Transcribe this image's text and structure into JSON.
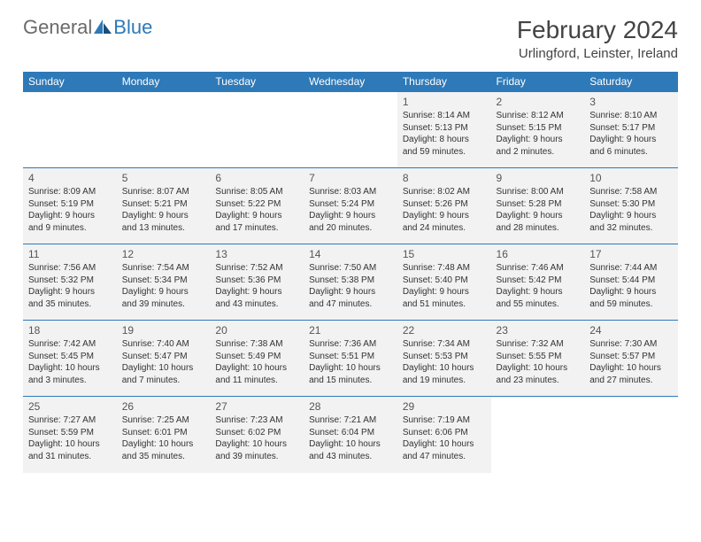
{
  "brand": {
    "word1": "General",
    "word2": "Blue"
  },
  "title": "February 2024",
  "location": "Urlingford, Leinster, Ireland",
  "colors": {
    "header_bg": "#2e79b8",
    "header_fg": "#ffffff",
    "cell_bg": "#f2f2f2",
    "border": "#2e79b8",
    "text": "#333333"
  },
  "day_headers": [
    "Sunday",
    "Monday",
    "Tuesday",
    "Wednesday",
    "Thursday",
    "Friday",
    "Saturday"
  ],
  "weeks": [
    [
      {
        "empty": true
      },
      {
        "empty": true
      },
      {
        "empty": true
      },
      {
        "empty": true
      },
      {
        "num": "1",
        "sunrise": "Sunrise: 8:14 AM",
        "sunset": "Sunset: 5:13 PM",
        "daylight": "Daylight: 8 hours and 59 minutes."
      },
      {
        "num": "2",
        "sunrise": "Sunrise: 8:12 AM",
        "sunset": "Sunset: 5:15 PM",
        "daylight": "Daylight: 9 hours and 2 minutes."
      },
      {
        "num": "3",
        "sunrise": "Sunrise: 8:10 AM",
        "sunset": "Sunset: 5:17 PM",
        "daylight": "Daylight: 9 hours and 6 minutes."
      }
    ],
    [
      {
        "num": "4",
        "sunrise": "Sunrise: 8:09 AM",
        "sunset": "Sunset: 5:19 PM",
        "daylight": "Daylight: 9 hours and 9 minutes."
      },
      {
        "num": "5",
        "sunrise": "Sunrise: 8:07 AM",
        "sunset": "Sunset: 5:21 PM",
        "daylight": "Daylight: 9 hours and 13 minutes."
      },
      {
        "num": "6",
        "sunrise": "Sunrise: 8:05 AM",
        "sunset": "Sunset: 5:22 PM",
        "daylight": "Daylight: 9 hours and 17 minutes."
      },
      {
        "num": "7",
        "sunrise": "Sunrise: 8:03 AM",
        "sunset": "Sunset: 5:24 PM",
        "daylight": "Daylight: 9 hours and 20 minutes."
      },
      {
        "num": "8",
        "sunrise": "Sunrise: 8:02 AM",
        "sunset": "Sunset: 5:26 PM",
        "daylight": "Daylight: 9 hours and 24 minutes."
      },
      {
        "num": "9",
        "sunrise": "Sunrise: 8:00 AM",
        "sunset": "Sunset: 5:28 PM",
        "daylight": "Daylight: 9 hours and 28 minutes."
      },
      {
        "num": "10",
        "sunrise": "Sunrise: 7:58 AM",
        "sunset": "Sunset: 5:30 PM",
        "daylight": "Daylight: 9 hours and 32 minutes."
      }
    ],
    [
      {
        "num": "11",
        "sunrise": "Sunrise: 7:56 AM",
        "sunset": "Sunset: 5:32 PM",
        "daylight": "Daylight: 9 hours and 35 minutes."
      },
      {
        "num": "12",
        "sunrise": "Sunrise: 7:54 AM",
        "sunset": "Sunset: 5:34 PM",
        "daylight": "Daylight: 9 hours and 39 minutes."
      },
      {
        "num": "13",
        "sunrise": "Sunrise: 7:52 AM",
        "sunset": "Sunset: 5:36 PM",
        "daylight": "Daylight: 9 hours and 43 minutes."
      },
      {
        "num": "14",
        "sunrise": "Sunrise: 7:50 AM",
        "sunset": "Sunset: 5:38 PM",
        "daylight": "Daylight: 9 hours and 47 minutes."
      },
      {
        "num": "15",
        "sunrise": "Sunrise: 7:48 AM",
        "sunset": "Sunset: 5:40 PM",
        "daylight": "Daylight: 9 hours and 51 minutes."
      },
      {
        "num": "16",
        "sunrise": "Sunrise: 7:46 AM",
        "sunset": "Sunset: 5:42 PM",
        "daylight": "Daylight: 9 hours and 55 minutes."
      },
      {
        "num": "17",
        "sunrise": "Sunrise: 7:44 AM",
        "sunset": "Sunset: 5:44 PM",
        "daylight": "Daylight: 9 hours and 59 minutes."
      }
    ],
    [
      {
        "num": "18",
        "sunrise": "Sunrise: 7:42 AM",
        "sunset": "Sunset: 5:45 PM",
        "daylight": "Daylight: 10 hours and 3 minutes."
      },
      {
        "num": "19",
        "sunrise": "Sunrise: 7:40 AM",
        "sunset": "Sunset: 5:47 PM",
        "daylight": "Daylight: 10 hours and 7 minutes."
      },
      {
        "num": "20",
        "sunrise": "Sunrise: 7:38 AM",
        "sunset": "Sunset: 5:49 PM",
        "daylight": "Daylight: 10 hours and 11 minutes."
      },
      {
        "num": "21",
        "sunrise": "Sunrise: 7:36 AM",
        "sunset": "Sunset: 5:51 PM",
        "daylight": "Daylight: 10 hours and 15 minutes."
      },
      {
        "num": "22",
        "sunrise": "Sunrise: 7:34 AM",
        "sunset": "Sunset: 5:53 PM",
        "daylight": "Daylight: 10 hours and 19 minutes."
      },
      {
        "num": "23",
        "sunrise": "Sunrise: 7:32 AM",
        "sunset": "Sunset: 5:55 PM",
        "daylight": "Daylight: 10 hours and 23 minutes."
      },
      {
        "num": "24",
        "sunrise": "Sunrise: 7:30 AM",
        "sunset": "Sunset: 5:57 PM",
        "daylight": "Daylight: 10 hours and 27 minutes."
      }
    ],
    [
      {
        "num": "25",
        "sunrise": "Sunrise: 7:27 AM",
        "sunset": "Sunset: 5:59 PM",
        "daylight": "Daylight: 10 hours and 31 minutes."
      },
      {
        "num": "26",
        "sunrise": "Sunrise: 7:25 AM",
        "sunset": "Sunset: 6:01 PM",
        "daylight": "Daylight: 10 hours and 35 minutes."
      },
      {
        "num": "27",
        "sunrise": "Sunrise: 7:23 AM",
        "sunset": "Sunset: 6:02 PM",
        "daylight": "Daylight: 10 hours and 39 minutes."
      },
      {
        "num": "28",
        "sunrise": "Sunrise: 7:21 AM",
        "sunset": "Sunset: 6:04 PM",
        "daylight": "Daylight: 10 hours and 43 minutes."
      },
      {
        "num": "29",
        "sunrise": "Sunrise: 7:19 AM",
        "sunset": "Sunset: 6:06 PM",
        "daylight": "Daylight: 10 hours and 47 minutes."
      },
      {
        "empty": true
      },
      {
        "empty": true
      }
    ]
  ]
}
